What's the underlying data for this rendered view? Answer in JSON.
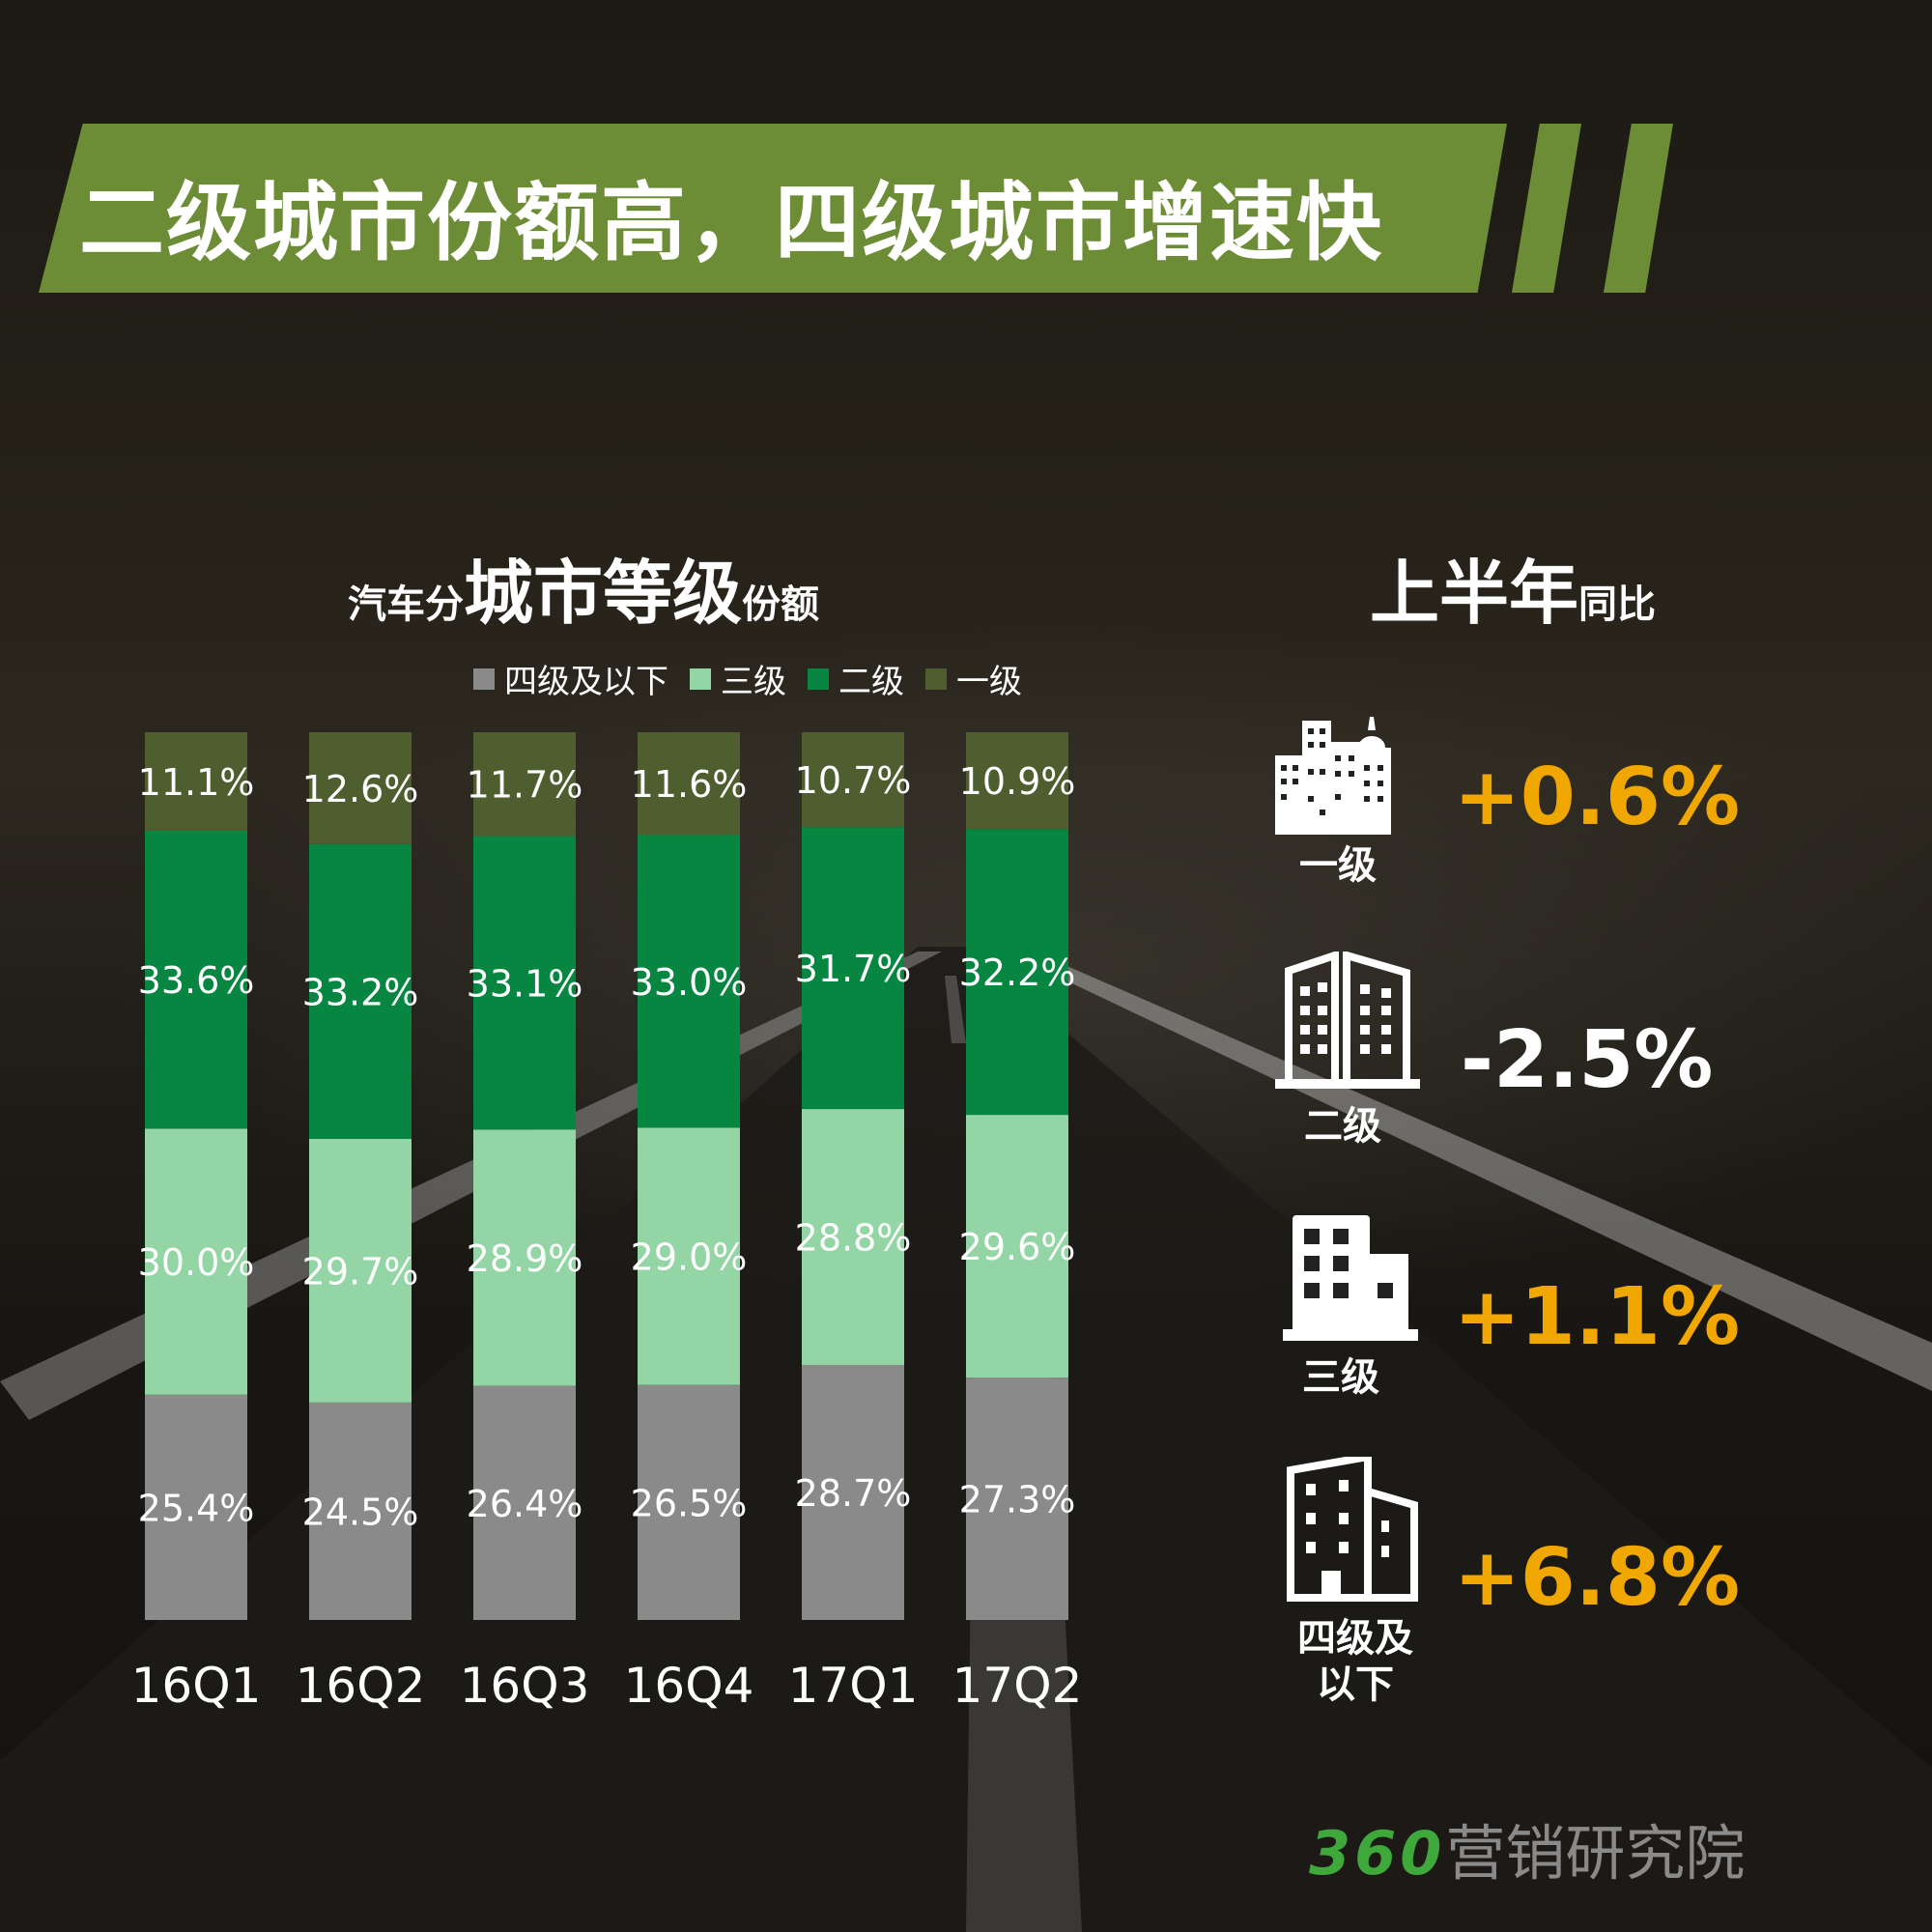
{
  "title": "二级城市份额高，四级城市增速快",
  "chart_title": {
    "prefix": "汽车分",
    "main": "城市等级",
    "suffix": "份额"
  },
  "legend": [
    {
      "label": "四级及以下",
      "color": "#8a8a8a"
    },
    {
      "label": "三级",
      "color": "#93d5a4"
    },
    {
      "label": "二级",
      "color": "#078641"
    },
    {
      "label": "一级",
      "color": "#4e5e2f"
    }
  ],
  "chart_data": {
    "type": "bar",
    "stacked": true,
    "categories": [
      "16Q1",
      "16Q2",
      "16Q3",
      "16Q4",
      "17Q1",
      "17Q2"
    ],
    "series": [
      {
        "name": "四级及以下",
        "color": "#8a8a8a",
        "values": [
          25.4,
          24.5,
          26.4,
          26.5,
          28.7,
          27.3
        ]
      },
      {
        "name": "三级",
        "color": "#93d5a4",
        "values": [
          30.0,
          29.7,
          28.9,
          29.0,
          28.8,
          29.6
        ]
      },
      {
        "name": "二级",
        "color": "#078641",
        "values": [
          33.6,
          33.2,
          33.1,
          33.0,
          31.7,
          32.2
        ]
      },
      {
        "name": "一级",
        "color": "#4e5e2f",
        "values": [
          11.1,
          12.6,
          11.7,
          11.6,
          10.7,
          10.9
        ]
      }
    ],
    "labels": [
      [
        "25.4%",
        "24.5%",
        "26.4%",
        "26.5%",
        "28.7%",
        "27.3%"
      ],
      [
        "30.0%",
        "29.7%",
        "28.9%",
        "29.0%",
        "28.8%",
        "29.6%"
      ],
      [
        "33.6%",
        "33.2%",
        "33.1%",
        "33.0%",
        "31.7%",
        "32.2%"
      ],
      [
        "11.1%",
        "12.6%",
        "11.7%",
        "11.6%",
        "10.7%",
        "10.9%"
      ]
    ],
    "ylim": [
      0,
      100
    ],
    "unit": "%"
  },
  "yoy": {
    "title_main": "上半年",
    "title_suffix": "同比",
    "tiers": [
      {
        "label_line1": "一级",
        "label_line2": "",
        "value": "+0.6%",
        "color": "#f0a800",
        "icon": "skyline-icon"
      },
      {
        "label_line1": "二级",
        "label_line2": "",
        "value": "-2.5%",
        "color": "#ffffff",
        "icon": "office-towers-icon"
      },
      {
        "label_line1": "三级",
        "label_line2": "",
        "value": "+1.1%",
        "color": "#f0a800",
        "icon": "small-building-icon"
      },
      {
        "label_line1": "四级及",
        "label_line2": "以下",
        "value": "+6.8%",
        "color": "#f0a800",
        "icon": "low-building-icon"
      }
    ]
  },
  "brand": {
    "number": "360",
    "text": "营销研究院"
  }
}
